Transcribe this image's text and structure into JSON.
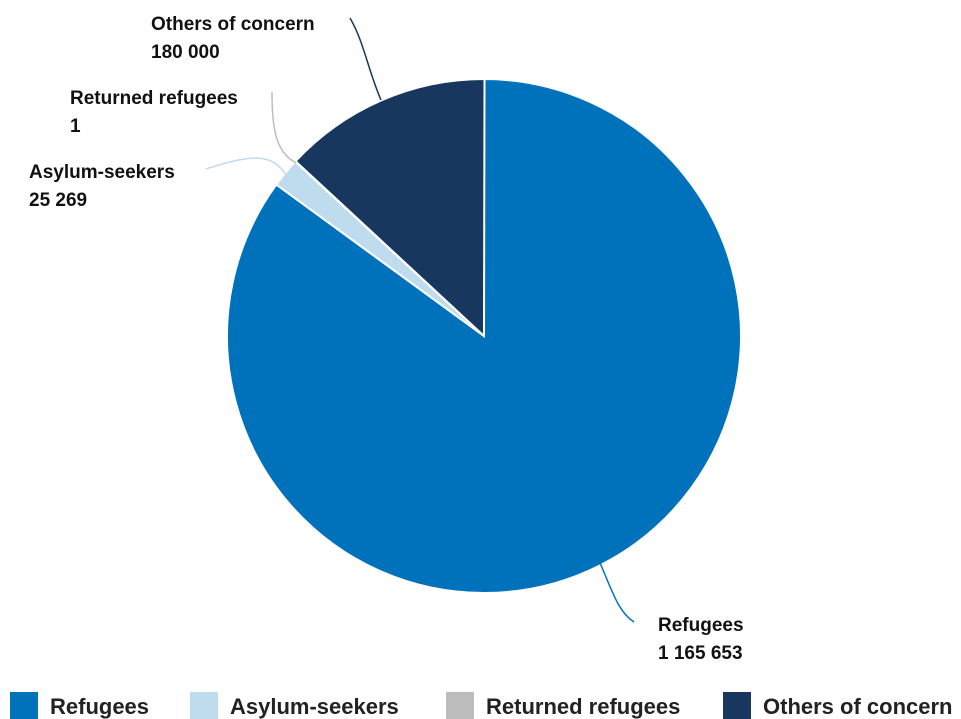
{
  "chart_data": {
    "type": "pie",
    "title": "",
    "series": [
      {
        "name": "Refugees",
        "label": "Refugees",
        "value_text": "1 165 653",
        "value": 1165653,
        "color": "#0072bc"
      },
      {
        "name": "Asylum-seekers",
        "label": "Asylum-seekers",
        "value_text": "25 269",
        "value": 25269,
        "color": "#bfdcef"
      },
      {
        "name": "Returned refugees",
        "label": "Returned refugees",
        "value_text": "1",
        "value": 1,
        "color": "#bdbdbd"
      },
      {
        "name": "Others of concern",
        "label": "Others of concern",
        "value_text": "180 000",
        "value": 180000,
        "color": "#18375f"
      }
    ],
    "legend": {
      "placement": "bottom",
      "items": [
        "Refugees",
        "Asylum-seekers",
        "Returned refugees",
        "Others of concern"
      ]
    }
  }
}
